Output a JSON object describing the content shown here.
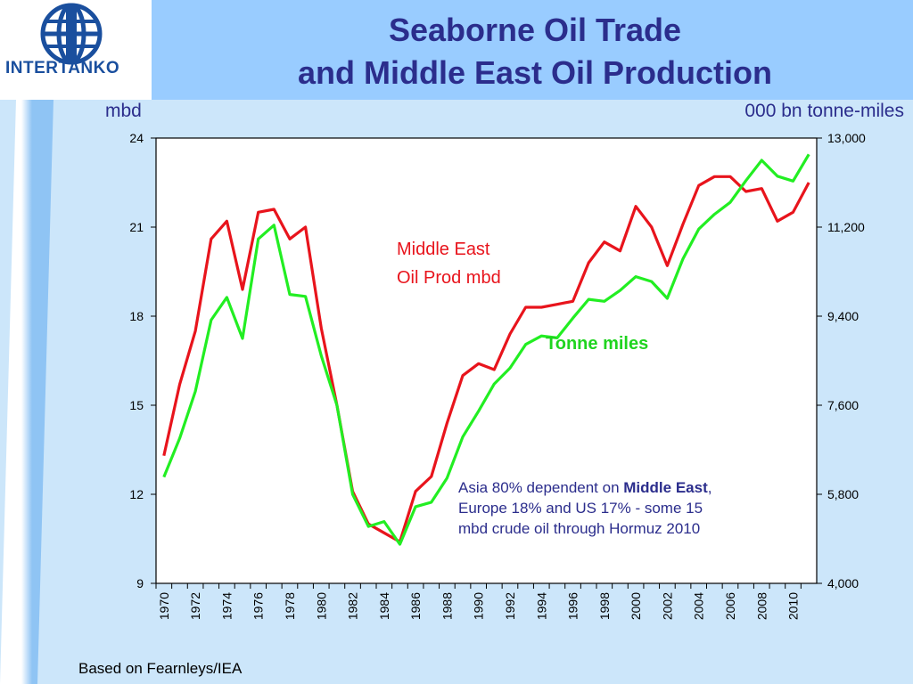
{
  "logo": {
    "text": "INTERTANKO"
  },
  "title": {
    "line1": "Seaborne Oil Trade",
    "line2": "and Middle East Oil Production"
  },
  "source": "Based on Fearnleys/IEA",
  "colors": {
    "title": "#2b2d8c",
    "middle_east": "#e8141c",
    "tonne_miles": "#22ee22",
    "annotation": "#2b2d8c"
  },
  "chart_data": {
    "type": "line",
    "ylabel_left": "mbd",
    "ylabel_right": "000 bn tonne-miles",
    "ylim_left": [
      9,
      24
    ],
    "ylim_right": [
      4000,
      13000
    ],
    "yticks_left": [
      "9",
      "12",
      "15",
      "18",
      "21",
      "24"
    ],
    "yticks_right": [
      "4,000",
      "5,800",
      "7,600",
      "9,400",
      "11,200",
      "13,000"
    ],
    "x": [
      1970,
      1971,
      1972,
      1973,
      1974,
      1975,
      1976,
      1977,
      1978,
      1979,
      1980,
      1981,
      1982,
      1983,
      1984,
      1985,
      1986,
      1987,
      1988,
      1989,
      1990,
      1991,
      1992,
      1993,
      1994,
      1995,
      1996,
      1997,
      1998,
      1999,
      2000,
      2001,
      2002,
      2003,
      2004,
      2005,
      2006,
      2007,
      2008,
      2009,
      2010,
      2011
    ],
    "xtick_labels": [
      "1970",
      "1972",
      "1974",
      "1976",
      "1978",
      "1980",
      "1982",
      "1984",
      "1986",
      "1988",
      "1990",
      "1992",
      "1994",
      "1996",
      "1998",
      "2000",
      "2002",
      "2004",
      "2006",
      "2008",
      "2010"
    ],
    "series": [
      {
        "name": "Middle East Oil Prod mbd",
        "axis": "left",
        "color": "#e8141c",
        "values": [
          13.3,
          15.7,
          17.5,
          20.6,
          21.2,
          18.9,
          21.5,
          21.6,
          20.6,
          21.0,
          17.6,
          15.0,
          12.1,
          11.0,
          10.7,
          10.4,
          12.1,
          12.6,
          14.4,
          16.0,
          16.4,
          16.2,
          17.4,
          18.3,
          18.3,
          18.4,
          18.5,
          19.8,
          20.5,
          20.2,
          21.7,
          21.0,
          19.7,
          21.1,
          22.4,
          22.7,
          22.7,
          22.2,
          22.3,
          21.2,
          21.5,
          22.5
        ]
      },
      {
        "name": "Tonne miles",
        "axis": "right",
        "color": "#22ee22",
        "values": [
          6150,
          6930,
          7880,
          9320,
          9780,
          8950,
          10960,
          11240,
          9840,
          9800,
          8600,
          7600,
          5800,
          5150,
          5250,
          4790,
          5550,
          5640,
          6130,
          6960,
          7480,
          8030,
          8350,
          8830,
          9000,
          8960,
          9360,
          9740,
          9700,
          9920,
          10200,
          10100,
          9760,
          10560,
          11160,
          11460,
          11700,
          12140,
          12550,
          12230,
          12130,
          12670
        ]
      }
    ],
    "annotations": [
      {
        "line1": "Middle East",
        "line2": "Oil Prod mbd"
      },
      {
        "text": "Tonne miles"
      },
      {
        "pre": "Asia 80% dependent on ",
        "bold": "Middle East",
        "post": ",",
        "line2": "Europe 18% and US 17%  - some 15",
        "line3": "mbd crude oil through Hormuz 2010"
      }
    ],
    "grid": false
  }
}
